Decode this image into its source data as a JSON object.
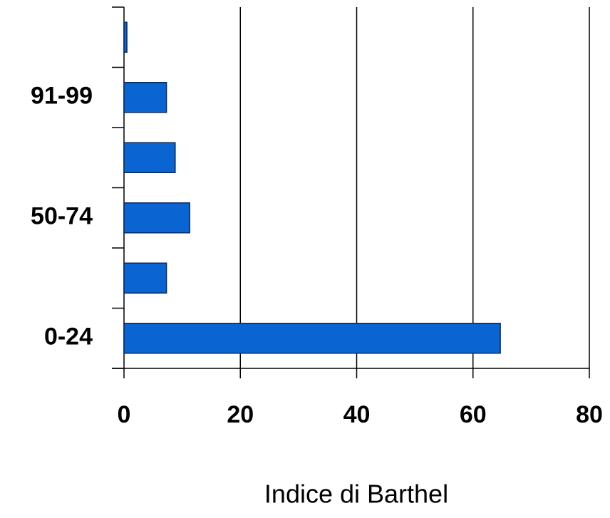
{
  "chart_data": {
    "type": "barh",
    "categories": [
      "0-24",
      null,
      "50-74",
      null,
      "91-99",
      null
    ],
    "values": [
      64.7,
      7.3,
      11.3,
      8.8,
      7.3,
      0.5
    ],
    "color": "#0a64d2",
    "xlabel": "Indice di Barthel",
    "xlim": [
      0,
      80
    ],
    "xticks": [
      0,
      20,
      40,
      60,
      80
    ],
    "grid": true
  }
}
